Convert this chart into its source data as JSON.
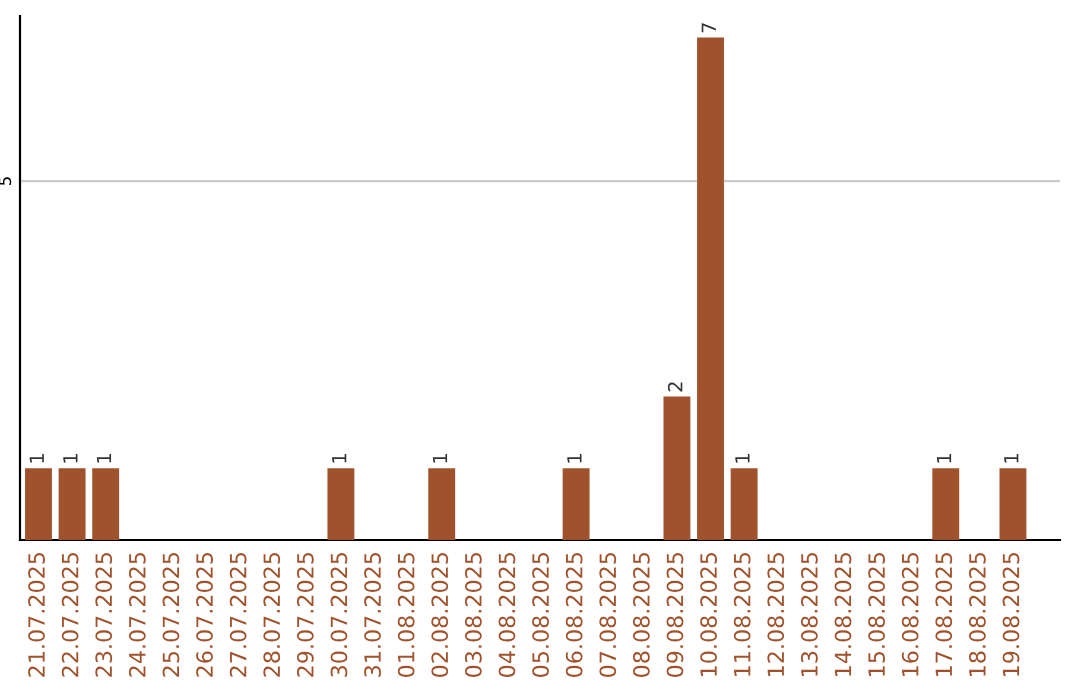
{
  "chart_data": {
    "type": "bar",
    "categories": [
      "21.07.2025",
      "22.07.2025",
      "23.07.2025",
      "24.07.2025",
      "25.07.2025",
      "26.07.2025",
      "27.07.2025",
      "28.07.2025",
      "29.07.2025",
      "30.07.2025",
      "31.07.2025",
      "01.08.2025",
      "02.08.2025",
      "03.08.2025",
      "04.08.2025",
      "05.08.2025",
      "06.08.2025",
      "07.08.2025",
      "08.08.2025",
      "09.08.2025",
      "10.08.2025",
      "11.08.2025",
      "12.08.2025",
      "13.08.2025",
      "14.08.2025",
      "15.08.2025",
      "16.08.2025",
      "17.08.2025",
      "18.08.2025",
      "19.08.2025"
    ],
    "values": [
      1,
      1,
      1,
      0,
      0,
      0,
      0,
      0,
      0,
      1,
      0,
      0,
      1,
      0,
      0,
      0,
      1,
      0,
      0,
      2,
      7,
      1,
      0,
      0,
      0,
      0,
      0,
      1,
      0,
      1
    ],
    "color": "#a0522d",
    "value_labels": [
      "1",
      "1",
      "1",
      null,
      null,
      null,
      null,
      null,
      null,
      "1",
      null,
      null,
      "1",
      null,
      null,
      null,
      "1",
      null,
      null,
      "2",
      "7",
      "1",
      null,
      null,
      null,
      null,
      null,
      "1",
      null,
      "1"
    ],
    "ylim": [
      0,
      7.3
    ],
    "yticks": [
      5
    ],
    "grid": "y"
  }
}
